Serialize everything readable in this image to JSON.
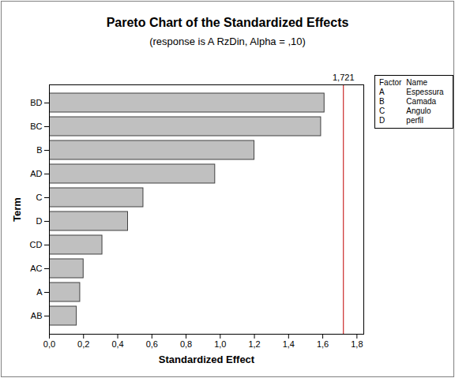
{
  "chart_data": {
    "type": "bar",
    "orientation": "horizontal",
    "title": "Pareto Chart of the Standardized Effects",
    "subtitle": "(response is A RzDin, Alpha = ,10)",
    "x_label": "Standardized Effect",
    "y_label": "Term",
    "categories": [
      "BD",
      "BC",
      "B",
      "AD",
      "C",
      "D",
      "CD",
      "AC",
      "A",
      "AB"
    ],
    "values": [
      1.61,
      1.59,
      1.2,
      0.97,
      0.55,
      0.46,
      0.31,
      0.2,
      0.18,
      0.16
    ],
    "color": "#c0c0c0",
    "xlim": [
      0,
      1.84
    ],
    "xticks": [
      {
        "value": 0,
        "label": "0,0"
      },
      {
        "value": 0.2,
        "label": "0,2"
      },
      {
        "value": 0.4,
        "label": "0,4"
      },
      {
        "value": 0.6,
        "label": "0,6"
      },
      {
        "value": 0.8,
        "label": "0,8"
      },
      {
        "value": 1.0,
        "label": "1,0"
      },
      {
        "value": 1.2,
        "label": "1,2"
      },
      {
        "value": 1.4,
        "label": "1,4"
      },
      {
        "value": 1.6,
        "label": "1,6"
      },
      {
        "value": 1.8,
        "label": "1,8"
      }
    ],
    "grid": false,
    "reference_line": {
      "value": 1.721,
      "label": "1,721",
      "color": "#c00000"
    },
    "legend_table": {
      "headers": [
        "Factor",
        "Name"
      ],
      "rows": [
        [
          "A",
          "Espessura"
        ],
        [
          "B",
          "Camada"
        ],
        [
          "C",
          "Angulo"
        ],
        [
          "D",
          "perfil"
        ]
      ]
    }
  }
}
